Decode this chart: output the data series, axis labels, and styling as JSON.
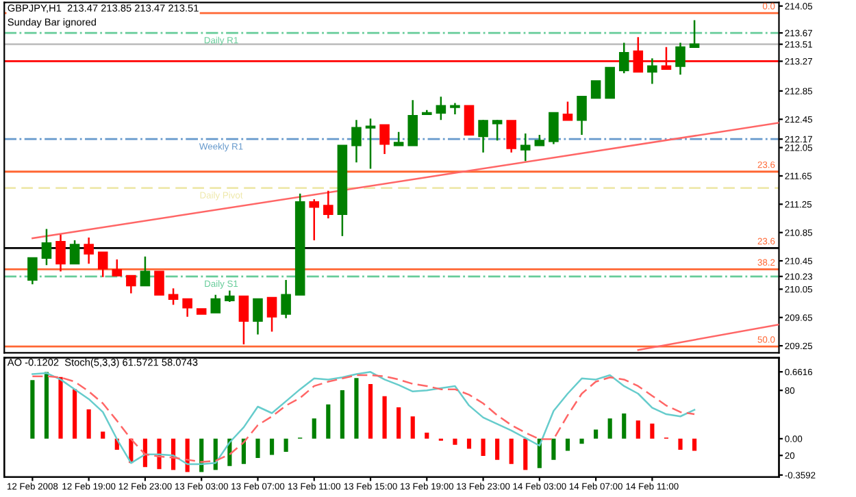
{
  "chart_data": [
    {
      "type": "candlestick",
      "title": "GBPJPY,H1  213.47 213.85 213.47 213.51",
      "subtitle": "Sunday Bar ignored",
      "x": [
        "2008-02-12T15:00",
        "2008-02-12T16:00",
        "2008-02-12T17:00",
        "2008-02-12T18:00",
        "2008-02-12T19:00",
        "2008-02-12T20:00",
        "2008-02-12T21:00",
        "2008-02-12T22:00",
        "2008-02-12T23:00",
        "2008-02-13T00:00",
        "2008-02-13T01:00",
        "2008-02-13T02:00",
        "2008-02-13T03:00",
        "2008-02-13T04:00",
        "2008-02-13T05:00",
        "2008-02-13T06:00",
        "2008-02-13T07:00",
        "2008-02-13T08:00",
        "2008-02-13T09:00",
        "2008-02-13T10:00",
        "2008-02-13T11:00",
        "2008-02-13T12:00",
        "2008-02-13T13:00",
        "2008-02-13T14:00",
        "2008-02-13T15:00",
        "2008-02-13T16:00",
        "2008-02-13T17:00",
        "2008-02-13T18:00",
        "2008-02-13T19:00",
        "2008-02-13T20:00",
        "2008-02-13T21:00",
        "2008-02-13T22:00",
        "2008-02-13T23:00",
        "2008-02-14T00:00",
        "2008-02-14T01:00",
        "2008-02-14T02:00",
        "2008-02-14T03:00",
        "2008-02-14T04:00",
        "2008-02-14T05:00",
        "2008-02-14T06:00",
        "2008-02-14T07:00",
        "2008-02-14T08:00",
        "2008-02-14T09:00",
        "2008-02-14T10:00",
        "2008-02-14T11:00",
        "2008-02-14T12:00",
        "2008-02-14T13:00",
        "2008-02-14T14:00"
      ],
      "ohlc": [
        [
          210.18,
          210.49,
          210.12,
          210.49
        ],
        [
          210.49,
          210.9,
          210.39,
          210.7
        ],
        [
          210.72,
          210.82,
          210.3,
          210.41
        ],
        [
          210.41,
          210.74,
          210.41,
          210.68
        ],
        [
          210.68,
          210.78,
          210.41,
          210.55
        ],
        [
          210.57,
          210.57,
          210.22,
          210.34
        ],
        [
          210.32,
          210.47,
          210.24,
          210.24
        ],
        [
          210.24,
          210.24,
          209.99,
          210.1
        ],
        [
          210.1,
          210.51,
          210.1,
          210.3
        ],
        [
          210.3,
          210.3,
          209.97,
          209.97
        ],
        [
          209.97,
          210.06,
          209.83,
          209.91
        ],
        [
          209.91,
          209.91,
          209.66,
          209.79
        ],
        [
          209.77,
          209.77,
          209.7,
          209.7
        ],
        [
          209.72,
          209.97,
          209.72,
          209.91
        ],
        [
          209.89,
          210.03,
          209.87,
          209.95
        ],
        [
          209.95,
          209.95,
          209.27,
          209.6
        ],
        [
          209.6,
          209.91,
          209.41,
          209.91
        ],
        [
          209.93,
          209.93,
          209.45,
          209.66
        ],
        [
          209.7,
          210.18,
          209.64,
          209.97
        ],
        [
          209.97,
          211.4,
          209.97,
          211.28
        ],
        [
          211.28,
          211.32,
          210.74,
          211.21
        ],
        [
          211.23,
          211.44,
          211.05,
          211.11
        ],
        [
          211.11,
          212.08,
          210.8,
          212.08
        ],
        [
          212.08,
          212.44,
          211.84,
          212.33
        ],
        [
          212.33,
          212.46,
          211.75,
          212.35
        ],
        [
          212.37,
          212.37,
          211.96,
          212.1
        ],
        [
          212.08,
          212.27,
          212.08,
          212.12
        ],
        [
          212.08,
          212.72,
          212.08,
          212.5
        ],
        [
          212.52,
          212.58,
          212.52,
          212.54
        ],
        [
          212.54,
          212.77,
          212.44,
          212.64
        ],
        [
          212.62,
          212.68,
          212.52,
          212.64
        ],
        [
          212.64,
          212.64,
          212.23,
          212.23
        ],
        [
          212.21,
          212.44,
          211.98,
          212.43
        ],
        [
          212.39,
          212.44,
          212.15,
          212.43
        ],
        [
          212.43,
          212.43,
          211.98,
          212.04
        ],
        [
          212.02,
          212.25,
          211.86,
          212.08
        ],
        [
          212.08,
          212.23,
          212.08,
          212.15
        ],
        [
          212.14,
          212.54,
          212.1,
          212.54
        ],
        [
          212.52,
          212.7,
          212.44,
          212.44
        ],
        [
          212.44,
          212.77,
          212.23,
          212.77
        ],
        [
          212.75,
          212.99,
          212.75,
          212.99
        ],
        [
          212.75,
          213.18,
          212.75,
          213.18
        ],
        [
          213.14,
          213.53,
          213.1,
          213.39
        ],
        [
          213.41,
          213.61,
          213.12,
          213.12
        ],
        [
          213.12,
          213.31,
          212.95,
          213.2
        ],
        [
          213.2,
          213.47,
          213.16,
          213.16
        ],
        [
          213.2,
          213.53,
          213.08,
          213.47
        ],
        [
          213.47,
          213.85,
          213.47,
          213.51
        ]
      ],
      "colors": [
        "#008000",
        "#008000",
        "#ff0000",
        "#008000",
        "#ff0000",
        "#ff0000",
        "#ff0000",
        "#ff0000",
        "#008000",
        "#ff0000",
        "#ff0000",
        "#ff0000",
        "#ff0000",
        "#008000",
        "#008000",
        "#ff0000",
        "#008000",
        "#ff0000",
        "#008000",
        "#008000",
        "#ff0000",
        "#ff0000",
        "#008000",
        "#008000",
        "#008000",
        "#ff0000",
        "#008000",
        "#008000",
        "#008000",
        "#008000",
        "#008000",
        "#ff0000",
        "#008000",
        "#008000",
        "#ff0000",
        "#008000",
        "#008000",
        "#008000",
        "#ff0000",
        "#008000",
        "#008000",
        "#008000",
        "#008000",
        "#ff0000",
        "#008000",
        "#ff0000",
        "#008000",
        "#008000"
      ],
      "series": [
        {
          "type": "line",
          "x": [
            "2008-02-12T15:00",
            "2008-02-14T20:00"
          ],
          "values": [
            210.77,
            212.4
          ],
          "color": "#ff6666"
        },
        {
          "type": "line",
          "x": [
            "2008-02-14T10:00",
            "2008-02-14T20:00"
          ],
          "values": [
            209.19,
            209.55
          ],
          "color": "#ff6666"
        }
      ],
      "ref_lines": [
        {
          "axis": "y",
          "value": 213.95,
          "color": "#ff6633"
        },
        {
          "axis": "y",
          "value": 213.67,
          "label": "Daily R1",
          "color": "#66cc99",
          "line_style": "dashdot"
        },
        {
          "axis": "y",
          "value": 213.51,
          "color": "#c0c0c0"
        },
        {
          "axis": "y",
          "value": 213.27,
          "color": "#ff0000"
        },
        {
          "axis": "y",
          "value": 212.17,
          "label": "Weekly R1",
          "color": "#6699cc",
          "line_style": "dashdot"
        },
        {
          "axis": "y",
          "value": 211.71,
          "color": "#ff6633"
        },
        {
          "axis": "y",
          "value": 211.48,
          "label": "Daily Pivot",
          "color": "#eee8aa",
          "line_style": "dashed"
        },
        {
          "axis": "y",
          "value": 210.63,
          "color": "#000000"
        },
        {
          "axis": "y",
          "value": 210.33,
          "color": "#ff6633"
        },
        {
          "axis": "y",
          "value": 210.23,
          "label": "Daily S1",
          "color": "#66cc99",
          "line_style": "dashdot"
        },
        {
          "axis": "y",
          "value": 209.24,
          "color": "#ff6633"
        }
      ],
      "annotations": [
        {
          "text": "0.0",
          "x": "2008-02-14T20:00",
          "y": 213.95
        },
        {
          "text": "23.6",
          "x": "2008-02-14T20:00",
          "y": 211.71
        },
        {
          "text": "23.6",
          "x": "2008-02-14T20:00",
          "y": 210.63
        },
        {
          "text": "38.2",
          "x": "2008-02-14T20:00",
          "y": 210.33
        },
        {
          "text": "50.0",
          "x": "2008-02-14T20:00",
          "y": 209.24
        }
      ],
      "xlim": [
        "2008-02-12T13:00",
        "2008-02-14T20:00"
      ],
      "ylim": [
        209.15,
        214.1
      ],
      "yticks": [
        214.05,
        213.67,
        213.51,
        213.27,
        212.85,
        212.45,
        212.17,
        212.05,
        211.65,
        211.25,
        210.85,
        210.45,
        210.23,
        210.05,
        209.65,
        209.25
      ],
      "tick_labels": "y"
    },
    {
      "type": "bar",
      "title": "AO -0.1202  Stoch(5,3,3) 61.5721 58.0743",
      "x": [
        "2008-02-12T15:00",
        "2008-02-12T16:00",
        "2008-02-12T17:00",
        "2008-02-12T18:00",
        "2008-02-12T19:00",
        "2008-02-12T20:00",
        "2008-02-12T21:00",
        "2008-02-12T22:00",
        "2008-02-12T23:00",
        "2008-02-13T00:00",
        "2008-02-13T01:00",
        "2008-02-13T02:00",
        "2008-02-13T03:00",
        "2008-02-13T04:00",
        "2008-02-13T05:00",
        "2008-02-13T06:00",
        "2008-02-13T07:00",
        "2008-02-13T08:00",
        "2008-02-13T09:00",
        "2008-02-13T10:00",
        "2008-02-13T11:00",
        "2008-02-13T12:00",
        "2008-02-13T13:00",
        "2008-02-13T14:00",
        "2008-02-13T15:00",
        "2008-02-13T16:00",
        "2008-02-13T17:00",
        "2008-02-13T18:00",
        "2008-02-13T19:00",
        "2008-02-13T20:00",
        "2008-02-13T21:00",
        "2008-02-13T22:00",
        "2008-02-13T23:00",
        "2008-02-14T00:00",
        "2008-02-14T01:00",
        "2008-02-14T02:00",
        "2008-02-14T03:00",
        "2008-02-14T04:00",
        "2008-02-14T05:00",
        "2008-02-14T06:00",
        "2008-02-14T07:00",
        "2008-02-14T08:00",
        "2008-02-14T09:00",
        "2008-02-14T10:00",
        "2008-02-14T11:00",
        "2008-02-14T12:00",
        "2008-02-14T13:00",
        "2008-02-14T14:00"
      ],
      "series": [
        {
          "type": "bar",
          "values": [
            0.58,
            0.66,
            0.61,
            0.49,
            0.29,
            0.07,
            -0.11,
            -0.24,
            -0.28,
            -0.3,
            -0.31,
            -0.33,
            -0.33,
            -0.31,
            -0.27,
            -0.25,
            -0.19,
            -0.16,
            -0.13,
            0.01,
            0.2,
            0.34,
            0.48,
            0.6,
            0.54,
            0.42,
            0.31,
            0.22,
            0.06,
            -0.02,
            -0.06,
            -0.1,
            -0.17,
            -0.21,
            -0.25,
            -0.31,
            -0.29,
            -0.21,
            -0.12,
            -0.05,
            0.09,
            0.2,
            0.25,
            0.18,
            0.15,
            0.01,
            -0.11,
            -0.12
          ],
          "colors": [
            "#008000",
            "#008000",
            "#ff0000",
            "#ff0000",
            "#ff0000",
            "#ff0000",
            "#ff0000",
            "#ff0000",
            "#ff0000",
            "#ff0000",
            "#ff0000",
            "#ff0000",
            "#008000",
            "#008000",
            "#008000",
            "#008000",
            "#008000",
            "#008000",
            "#008000",
            "#008000",
            "#008000",
            "#008000",
            "#008000",
            "#008000",
            "#ff0000",
            "#ff0000",
            "#ff0000",
            "#ff0000",
            "#ff0000",
            "#ff0000",
            "#ff0000",
            "#ff0000",
            "#ff0000",
            "#ff0000",
            "#ff0000",
            "#ff0000",
            "#008000",
            "#008000",
            "#008000",
            "#008000",
            "#008000",
            "#008000",
            "#008000",
            "#ff0000",
            "#ff0000",
            "#ff0000",
            "#ff0000",
            "#ff0000"
          ]
        },
        {
          "type": "line",
          "axis": "y2",
          "color": "#66cccc",
          "values": [
            95,
            96,
            90,
            81,
            72,
            60,
            35,
            13,
            21,
            21,
            20,
            12,
            12,
            13,
            32,
            46,
            65,
            59,
            70,
            81,
            91,
            90,
            92,
            95,
            97,
            90,
            85,
            79,
            80,
            82,
            84,
            66,
            55,
            49,
            43,
            36,
            29,
            61,
            77,
            91,
            90,
            94,
            84,
            77,
            64,
            58,
            56,
            62
          ]
        },
        {
          "type": "line",
          "axis": "y2",
          "color": "#ff6666",
          "line_style": "dashed",
          "values": [
            93,
            93,
            92,
            88,
            79,
            68,
            52,
            35,
            21,
            19,
            18,
            16,
            14,
            15,
            21,
            32,
            48,
            56,
            66,
            73,
            84,
            88,
            91,
            94,
            94,
            93,
            90,
            86,
            84,
            81,
            81,
            76,
            68,
            57,
            48,
            41,
            35,
            35,
            57,
            77,
            88,
            92,
            90,
            84,
            75,
            66,
            60,
            58
          ]
        }
      ],
      "xlim": [
        "2008-02-12T13:00",
        "2008-02-14T20:00"
      ],
      "xticks": [
        {
          "value": "2008-02-12T15:00",
          "label": "12 Feb 2008"
        },
        {
          "value": "2008-02-12T19:00",
          "label": "12 Feb 19:00"
        },
        {
          "value": "2008-02-12T23:00",
          "label": "12 Feb 23:00"
        },
        {
          "value": "2008-02-13T03:00",
          "label": "13 Feb 03:00"
        },
        {
          "value": "2008-02-13T07:00",
          "label": "13 Feb 07:00"
        },
        {
          "value": "2008-02-13T11:00",
          "label": "13 Feb 11:00"
        },
        {
          "value": "2008-02-13T15:00",
          "label": "13 Feb 15:00"
        },
        {
          "value": "2008-02-13T19:00",
          "label": "13 Feb 19:00"
        },
        {
          "value": "2008-02-13T23:00",
          "label": "13 Feb 23:00"
        },
        {
          "value": "2008-02-14T03:00",
          "label": "14 Feb 03:00"
        },
        {
          "value": "2008-02-14T07:00",
          "label": "14 Feb 07:00"
        },
        {
          "value": "2008-02-14T11:00",
          "label": "14 Feb 11:00"
        }
      ],
      "ylim": [
        -0.38,
        0.8
      ],
      "yticks": [
        0.6616,
        {
          "value": 0,
          "label": "0.00"
        },
        -0.3592
      ],
      "y2lim": [
        0,
        110
      ],
      "y2ticks": [
        80,
        20
      ]
    }
  ]
}
